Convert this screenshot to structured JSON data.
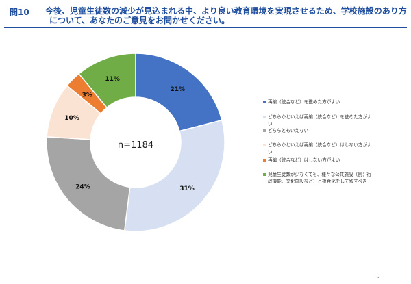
{
  "header": {
    "question_number": "問10",
    "question_line1": "今後、児童生徒数の減少が見込まれる中、より良い教育環境を実現させるため、学校施設のあり方",
    "question_line2": "について、あなたのご意見をお聞かせください。"
  },
  "page_number": "3",
  "chart_data": {
    "type": "pie",
    "variant": "donut",
    "center_label": "n=1184",
    "categories": [
      "再編（統合など）を進めた方がよい",
      "どちらかといえば再編（統合など）を進めた方がよい",
      "どちらともいえない",
      "どちらかといえば再編（統合など）はしない方がよい",
      "再編（統合など）はしない方がよい",
      "児童生徒数が少なくても、様々な公共施設（例：行政機能、文化施設など）と複合化をして残すべき"
    ],
    "values": [
      21,
      31,
      24,
      10,
      3,
      11
    ],
    "data_labels": [
      "21%",
      "31%",
      "24%",
      "10%",
      "3%",
      "11%"
    ],
    "colors": [
      "#4472c4",
      "#d6e0f2",
      "#a5a5a5",
      "#fbe3d4",
      "#ed7d31",
      "#70ad47"
    ],
    "legend_position": "right",
    "legend_lines": [
      [
        "再編（統合など）を進めた方がよい"
      ],
      [
        "どちらかといえば再編（統合など）を進めた方がよ",
        "い"
      ],
      [
        "どちらともいえない"
      ],
      [
        "どちらかといえば再編（統合など）はしない方がよ",
        "い"
      ],
      [
        "再編（統合など）はしない方がよい"
      ],
      [
        "児童生徒数が少なくても、様々な公共施設（例：行",
        "政機能、文化施設など）と複合化をして残すべき"
      ]
    ]
  }
}
